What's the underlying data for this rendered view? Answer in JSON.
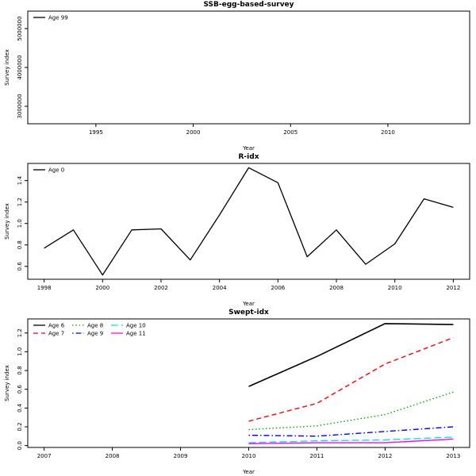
{
  "chart_data": [
    {
      "type": "line",
      "title": "SSB-egg-based-survey",
      "xlabel": "Year",
      "ylabel": "Survey index",
      "xlim": [
        1991.5,
        2014.2
      ],
      "ylim": [
        2550000,
        5450000
      ],
      "xticks": [
        1995,
        2000,
        2005,
        2010
      ],
      "xtick_labels": [
        "1995",
        "2000",
        "2005",
        "2010"
      ],
      "yticks": [
        3000000,
        4000000,
        5000000
      ],
      "ytick_labels": [
        "3000000",
        "4000000",
        "5000000"
      ],
      "grid": false,
      "legend": {
        "position": "top-left",
        "rows": 1,
        "items": [
          {
            "label": "Age 99",
            "color": "#000000",
            "dash": "solid"
          }
        ]
      },
      "series": []
    },
    {
      "type": "line",
      "title": "R-idx",
      "xlabel": "Year",
      "ylabel": "Survey index",
      "xlim": [
        1997.44,
        2012.56
      ],
      "ylim": [
        0.48,
        1.56
      ],
      "xticks": [
        1998,
        2000,
        2002,
        2004,
        2006,
        2008,
        2010,
        2012
      ],
      "xtick_labels": [
        "1998",
        "2000",
        "2002",
        "2004",
        "2006",
        "2008",
        "2010",
        "2012"
      ],
      "yticks": [
        0.6,
        0.8,
        1.0,
        1.2,
        1.4
      ],
      "ytick_labels": [
        "0.6",
        "0.8",
        "1.0",
        "1.2",
        "1.4"
      ],
      "grid": false,
      "legend": {
        "position": "top-left",
        "rows": 1,
        "items": [
          {
            "label": "Age 0",
            "color": "#000000",
            "dash": "solid"
          }
        ]
      },
      "series": [
        {
          "name": "Age 0",
          "color": "#000000",
          "dash": "solid",
          "width": 1.3,
          "x": [
            1998,
            1999,
            2000,
            2001,
            2002,
            2003,
            2004,
            2005,
            2006,
            2007,
            2008,
            2009,
            2010,
            2011,
            2012
          ],
          "y": [
            0.77,
            0.94,
            0.52,
            0.94,
            0.95,
            0.66,
            1.08,
            1.52,
            1.38,
            0.69,
            0.94,
            0.62,
            0.81,
            1.23,
            1.15
          ]
        }
      ]
    },
    {
      "type": "line",
      "title": "Swept-idx",
      "xlabel": "Year",
      "ylabel": "Survey index",
      "xlim": [
        2006.76,
        2013.24
      ],
      "ylim": [
        -0.02,
        1.35
      ],
      "xticks": [
        2007,
        2008,
        2009,
        2010,
        2011,
        2012,
        2013
      ],
      "xtick_labels": [
        "2007",
        "2008",
        "2009",
        "2010",
        "2011",
        "2012",
        "2013"
      ],
      "yticks": [
        0.0,
        0.2,
        0.4,
        0.6,
        0.8,
        1.0,
        1.2
      ],
      "ytick_labels": [
        "0.0",
        "0.2",
        "0.4",
        "0.6",
        "0.8",
        "1.0",
        "1.2"
      ],
      "grid": false,
      "legend": {
        "position": "top-left",
        "rows": 2,
        "items": [
          {
            "label": "Age 6",
            "color": "#000000",
            "dash": "solid"
          },
          {
            "label": "Age 7",
            "color": "#ff0000",
            "dash": "dashed"
          },
          {
            "label": "Age 8",
            "color": "#00a800",
            "dash": "dotted"
          },
          {
            "label": "Age 9",
            "color": "#0000ff",
            "dash": "dotdash"
          },
          {
            "label": "Age 10",
            "color": "#00e5e5",
            "dash": "longdash"
          },
          {
            "label": "Age 11",
            "color": "#ff00ff",
            "dash": "solid"
          }
        ]
      },
      "series": [
        {
          "name": "Age 6",
          "color": "#000000",
          "dash": "solid",
          "width": 1.6,
          "x": [
            2010,
            2011,
            2012,
            2013
          ],
          "y": [
            0.63,
            0.95,
            1.3,
            1.29
          ]
        },
        {
          "name": "Age 7",
          "color": "#ff0000",
          "dash": "dashed",
          "width": 1.4,
          "x": [
            2010,
            2011,
            2012,
            2013
          ],
          "y": [
            0.26,
            0.45,
            0.87,
            1.15
          ]
        },
        {
          "name": "Age 8",
          "color": "#00a800",
          "dash": "dotted",
          "width": 1.4,
          "x": [
            2010,
            2011,
            2012,
            2013
          ],
          "y": [
            0.17,
            0.21,
            0.33,
            0.57
          ]
        },
        {
          "name": "Age 9",
          "color": "#0000ff",
          "dash": "dotdash",
          "width": 1.4,
          "x": [
            2010,
            2011,
            2012,
            2013
          ],
          "y": [
            0.11,
            0.1,
            0.15,
            0.2
          ]
        },
        {
          "name": "Age 10",
          "color": "#00e5e5",
          "dash": "longdash",
          "width": 1.4,
          "x": [
            2010,
            2011,
            2012,
            2013
          ],
          "y": [
            0.03,
            0.05,
            0.06,
            0.09
          ]
        },
        {
          "name": "Age 11",
          "color": "#ff00ff",
          "dash": "solid",
          "width": 1.4,
          "x": [
            2010,
            2011,
            2012,
            2013
          ],
          "y": [
            0.02,
            0.03,
            0.03,
            0.07
          ]
        }
      ]
    }
  ]
}
